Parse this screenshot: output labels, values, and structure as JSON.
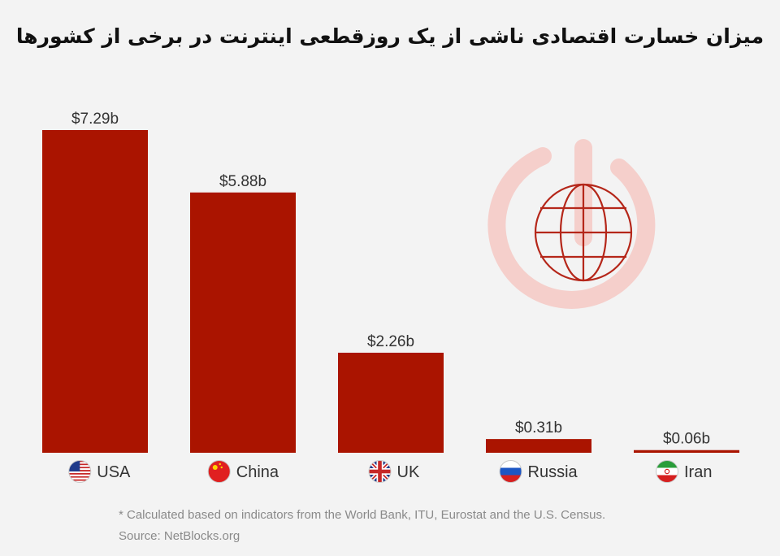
{
  "chart_data": {
    "type": "bar",
    "title": "میزان خسارت اقتصادی ناشی از یک روزقطعی اینترنت در برخی از کشورها",
    "categories": [
      "USA",
      "China",
      "UK",
      "Russia",
      "Iran"
    ],
    "values": [
      7.29,
      5.88,
      2.26,
      0.31,
      0.06
    ],
    "data_labels": [
      "$7.29b",
      "$5.88b",
      "$2.26b",
      "$0.31b",
      "$0.06b"
    ],
    "flag_icons": [
      "usa-flag-icon",
      "china-flag-icon",
      "uk-flag-icon",
      "russia-flag-icon",
      "iran-flag-icon"
    ],
    "ylim": [
      0,
      7.29
    ],
    "grid": false,
    "bar_color": "#aa1400"
  },
  "decoration": {
    "icon": "power-globe-icon",
    "color": "#f5cfcb",
    "globe_color": "#b5271a"
  },
  "footnote": "* Calculated based on indicators from the World Bank, ITU, Eurostat and the U.S. Census.",
  "source": "Source: NetBlocks.org"
}
